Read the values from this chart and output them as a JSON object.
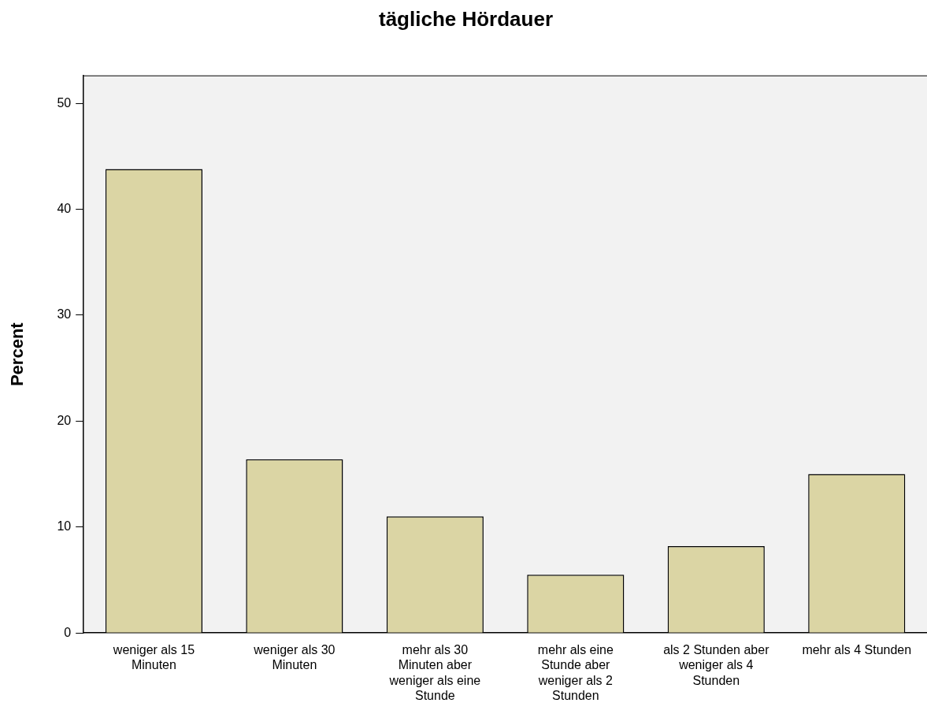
{
  "chart_data": {
    "type": "bar",
    "title": "tägliche Hördauer",
    "ylabel": "Percent",
    "categories": [
      "weniger als 15 Minuten",
      "weniger als 30 Minuten",
      "mehr als 30 Minuten aber weniger als eine Stunde",
      "mehr als eine Stunde aber weniger als 2 Stunden",
      "als 2 Stunden aber weniger als 4 Stunden",
      "mehr als 4 Stunden"
    ],
    "values": [
      43.8,
      16.4,
      11.0,
      5.5,
      8.2,
      15.0
    ],
    "color": "#dbd5a4",
    "ylim": [
      0,
      52.6
    ],
    "yticks": [
      0,
      10,
      20,
      30,
      40,
      50
    ],
    "grid": false,
    "legend": false
  }
}
